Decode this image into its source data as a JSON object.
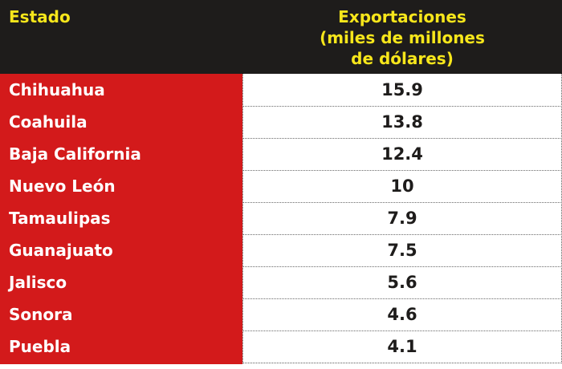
{
  "colors": {
    "header_bg": "#1e1c1b",
    "header_text": "#f7e61b",
    "state_bg": "#d31a1b",
    "state_text": "#ffffff",
    "value_text": "#1e1c1b"
  },
  "chart_data": {
    "type": "table",
    "columns": [
      "Estado",
      "Exportaciones (miles de millones de dólares)"
    ],
    "header": {
      "state": "Estado",
      "value_lines": [
        "Exportaciones",
        "(miles de millones",
        "de dólares)"
      ]
    },
    "rows": [
      {
        "state": "Chihuahua",
        "value": "15.9"
      },
      {
        "state": "Coahuila",
        "value": "13.8"
      },
      {
        "state": "Baja California",
        "value": "12.4"
      },
      {
        "state": "Nuevo León",
        "value": "10"
      },
      {
        "state": "Tamaulipas",
        "value": "7.9"
      },
      {
        "state": "Guanajuato",
        "value": "7.5"
      },
      {
        "state": "Jalisco",
        "value": "5.6"
      },
      {
        "state": "Sonora",
        "value": "4.6"
      },
      {
        "state": "Puebla",
        "value": "4.1"
      }
    ]
  }
}
